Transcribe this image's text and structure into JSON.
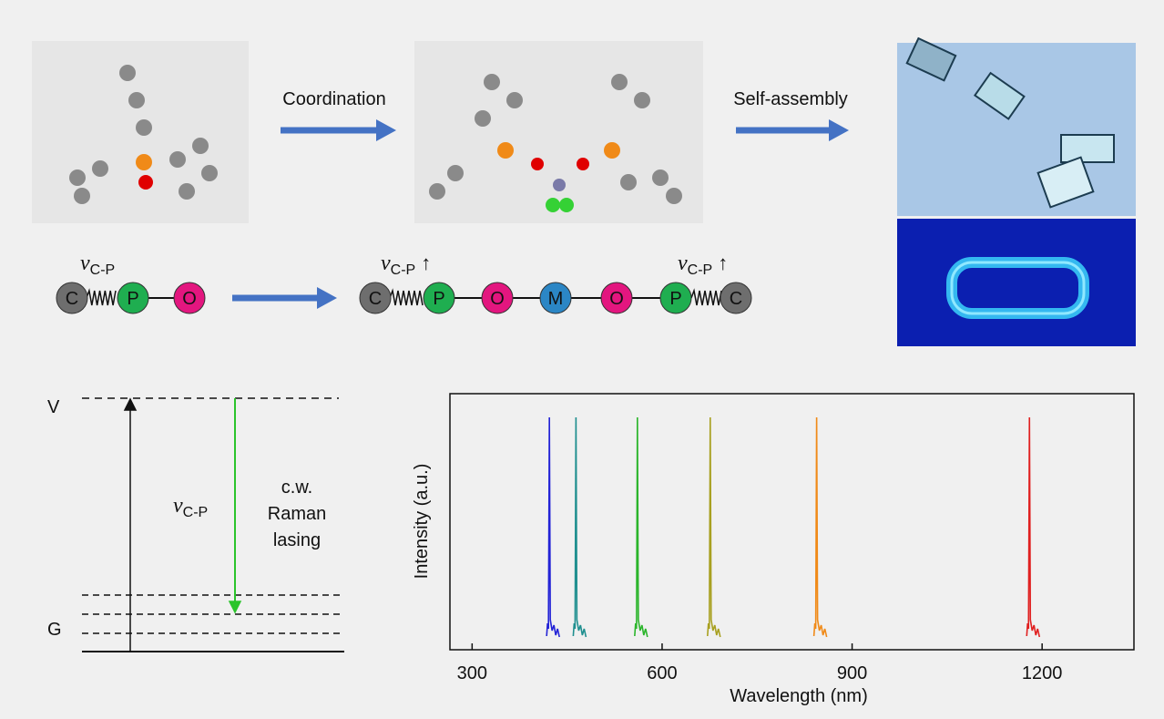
{
  "top_scheme": {
    "steps": [
      "Coordination",
      "Self-assembly"
    ]
  },
  "bond_scheme": {
    "reactant_atoms": [
      "C",
      "P",
      "O"
    ],
    "product_atoms": [
      "C",
      "P",
      "O",
      "M",
      "O",
      "P",
      "C"
    ],
    "labels": [
      {
        "symbol": "v",
        "subscript": "C-P"
      },
      {
        "symbol": "v",
        "subscript": "C-P",
        "suffix": "↑"
      },
      {
        "symbol": "v",
        "subscript": "C-P",
        "suffix": "↑"
      }
    ]
  },
  "energy_diagram": {
    "upper_level": "V",
    "lower_level": "G",
    "transition": {
      "symbol": "v",
      "subscript": "C-P"
    },
    "process": [
      "c.w.",
      "Raman",
      "lasing"
    ]
  },
  "chart_data": {
    "type": "spectrum",
    "xlabel": "Wavelength (nm)",
    "ylabel": "Intensity (a.u.)",
    "xlim": [
      265,
      1345
    ],
    "xticks": [
      300,
      600,
      900,
      1200
    ],
    "peaks": [
      422,
      464,
      561,
      676,
      844,
      1180
    ],
    "colors": [
      "#2323d6",
      "#1f8f8f",
      "#2bb52b",
      "#a8a020",
      "#f08a18",
      "#e02020"
    ]
  }
}
